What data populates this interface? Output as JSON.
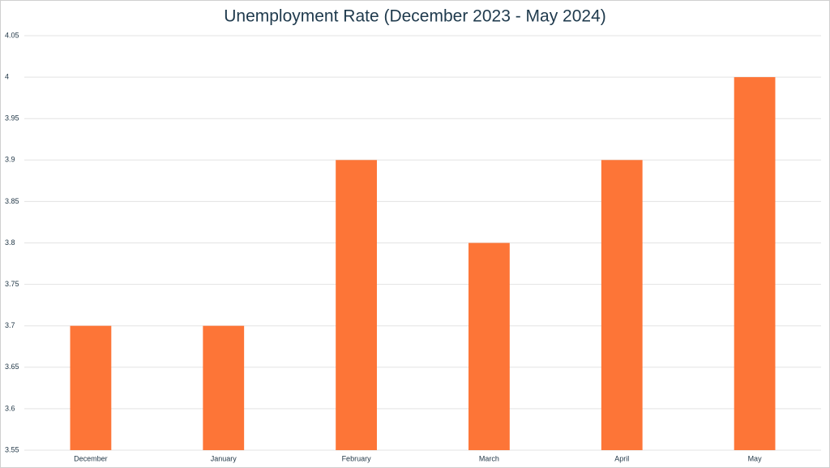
{
  "chart_data": {
    "type": "bar",
    "title": "Unemployment Rate (December 2023 - May 2024)",
    "categories": [
      "December",
      "January",
      "February",
      "March",
      "April",
      "May"
    ],
    "values": [
      3.7,
      3.7,
      3.9,
      3.8,
      3.9,
      4.0
    ],
    "color": "#fd7537",
    "ylim": [
      3.55,
      4.05
    ],
    "yticks": [
      3.55,
      3.6,
      3.65,
      3.7,
      3.75,
      3.8,
      3.85,
      3.9,
      3.95,
      4,
      4.05
    ],
    "grid": true
  }
}
